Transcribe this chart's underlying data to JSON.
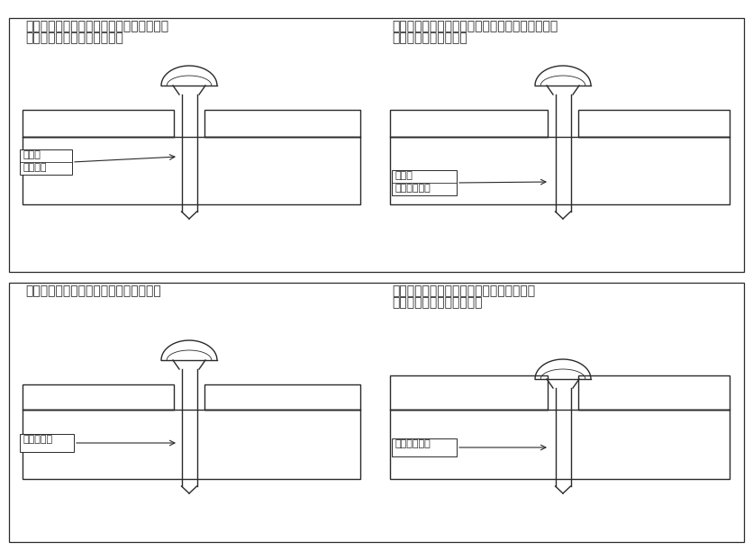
{
  "bg_color": "#ffffff",
  "line_color": "#2a2a2a",
  "text_color": "#2a2a2a",
  "title_tl_l1": "おねじ胴部破断：相手材金属の場合に発生",
  "title_tl_l2": "相手材硬質樹脂の場合に発生",
  "title_tr_l1": "おねじ　ねじ山せん断：小ねじ使用時、めねじの",
  "title_tr_l2": "強度が高い場合に発生",
  "title_bl_l1": "めねじ破断：相手材が樹脂の場合に発生",
  "title_br_l1": "被締結物陥没：被締結材が柔らかい場合、",
  "title_br_l2": "被締結材が薄い場合に発生",
  "lbl_tl_1": "おねじ",
  "lbl_tl_2": "胴部破断",
  "lbl_tr_1": "おねじ",
  "lbl_tr_2": "ねじ山せん断",
  "lbl_bl": "めねじ破断",
  "lbl_br": "被締結物陥没",
  "fontsize_title": 10,
  "fontsize_label": 8
}
